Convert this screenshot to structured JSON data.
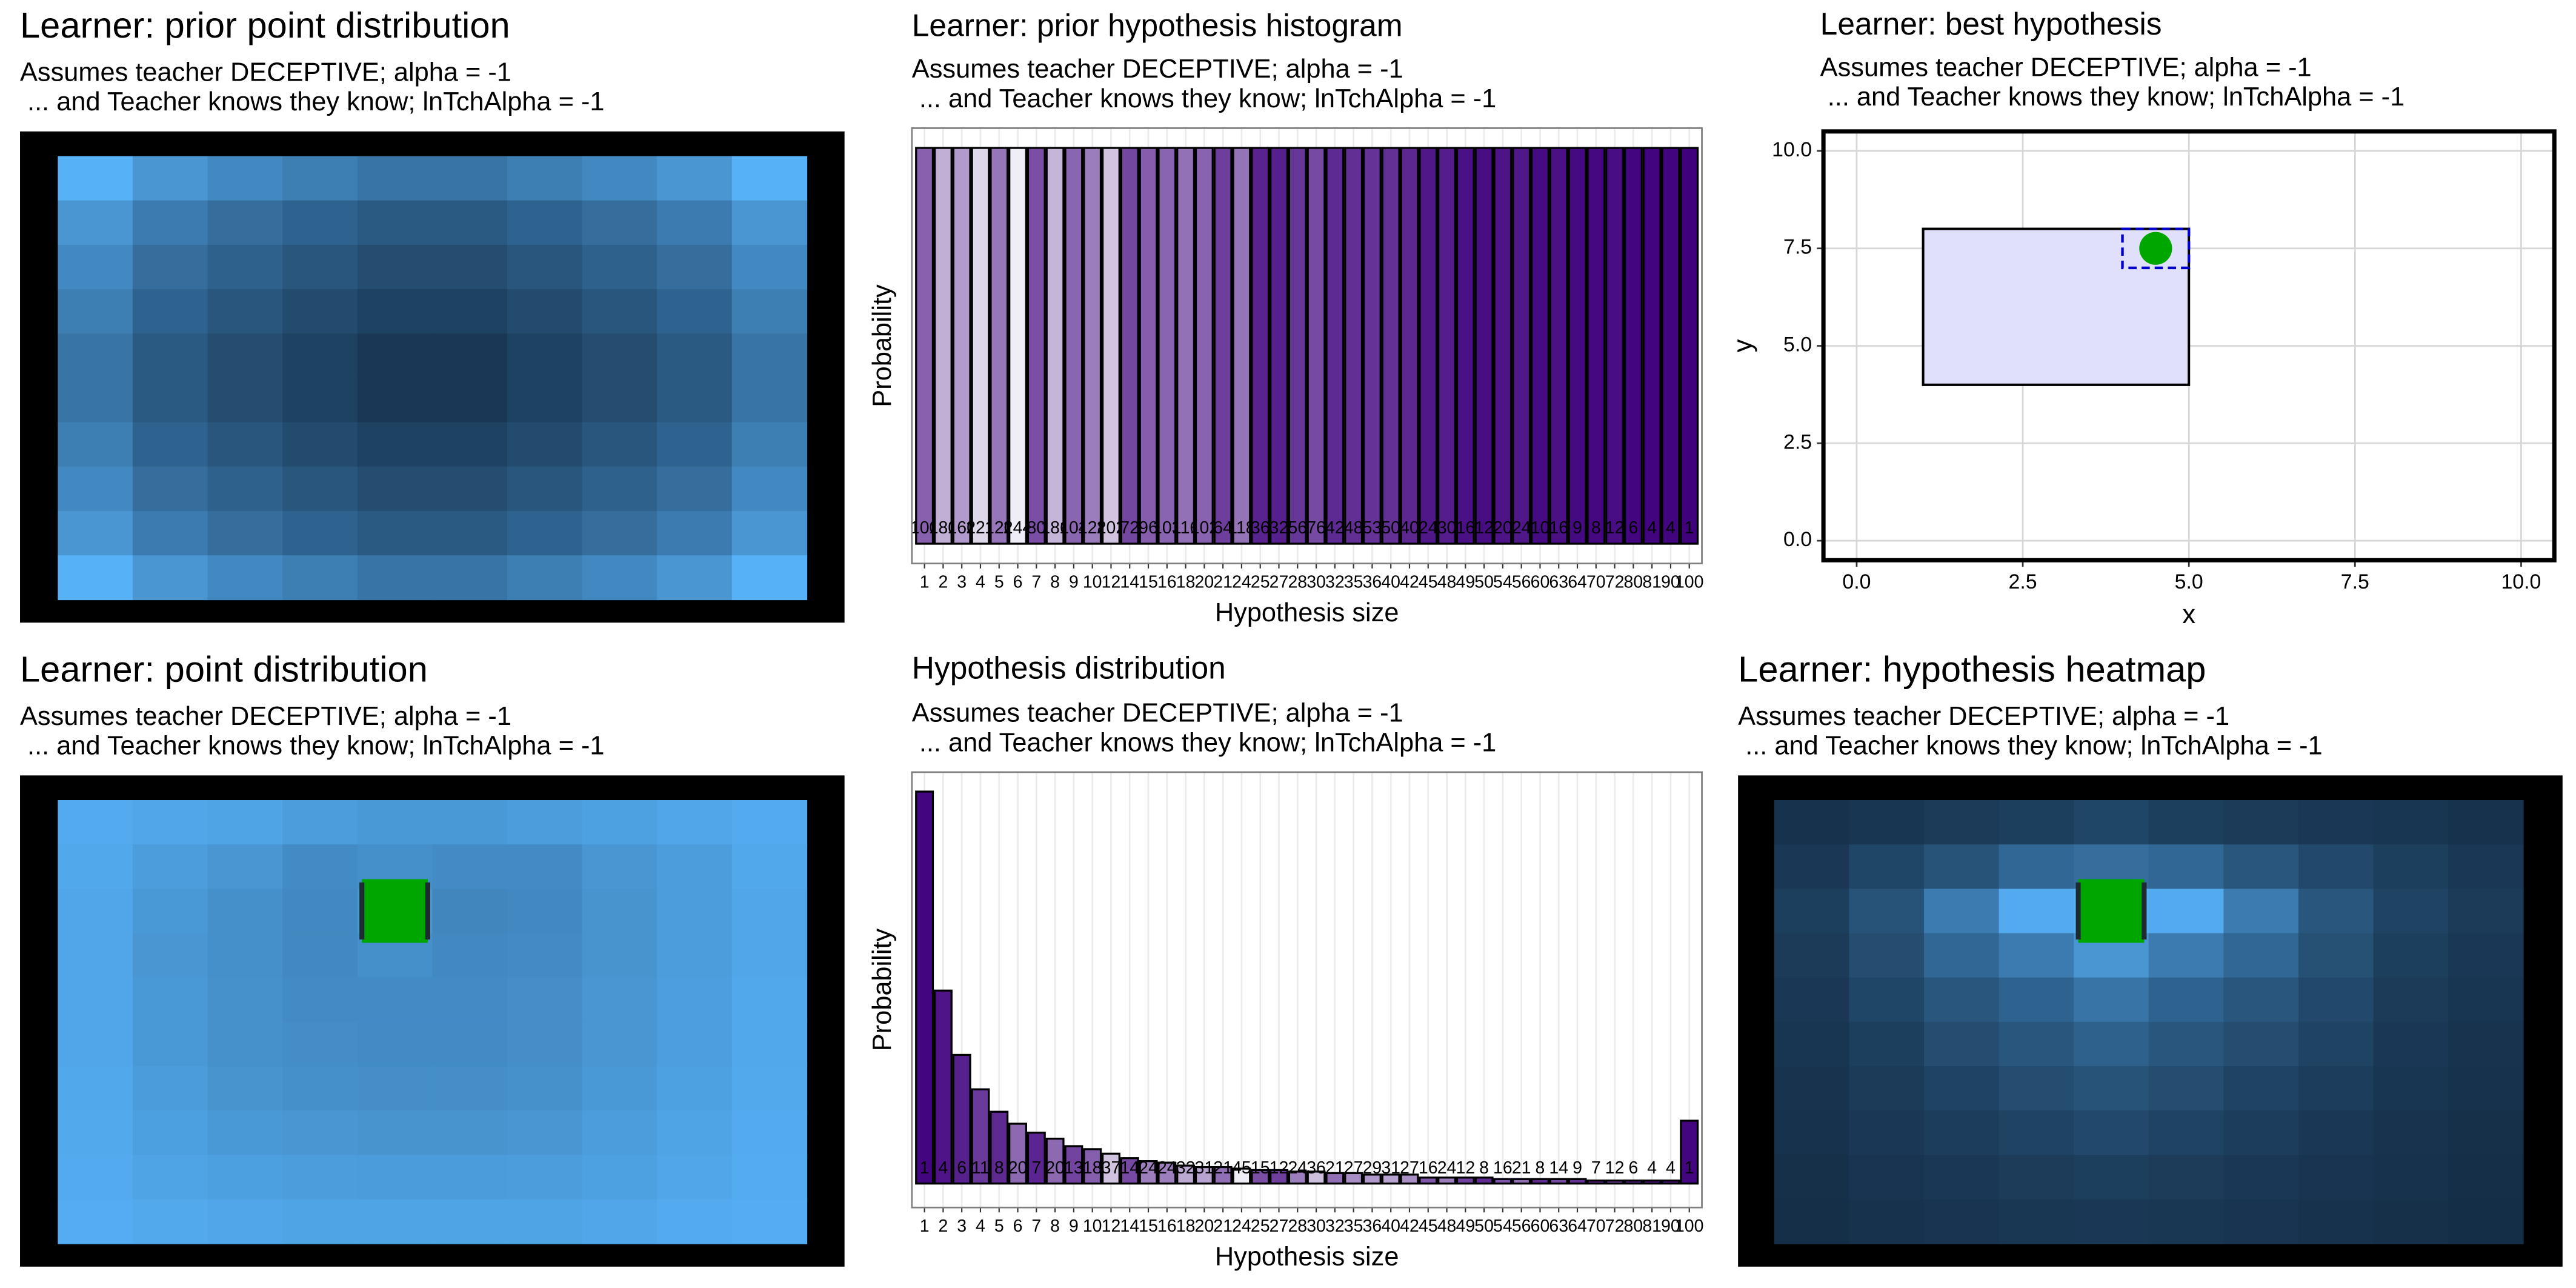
{
  "chart_data": [
    {
      "type": "heatmap",
      "title": "Learner: prior point distribution",
      "subtitle": [
        "Assumes teacher DECEPTIVE; alpha = -1",
        " ... and Teacher knows they know; lnTchAlpha = -1"
      ],
      "low_color": "#132B43",
      "high_color": "#56B1F7",
      "color_limits": [
        0,
        1
      ],
      "values": [
        [
          1.0,
          0.8,
          0.7,
          0.62,
          0.55,
          0.55,
          0.62,
          0.7,
          0.8,
          1.0
        ],
        [
          0.8,
          0.6,
          0.5,
          0.42,
          0.35,
          0.35,
          0.42,
          0.5,
          0.6,
          0.8
        ],
        [
          0.7,
          0.5,
          0.4,
          0.32,
          0.25,
          0.25,
          0.32,
          0.4,
          0.5,
          0.7
        ],
        [
          0.62,
          0.42,
          0.32,
          0.24,
          0.17,
          0.17,
          0.24,
          0.32,
          0.42,
          0.62
        ],
        [
          0.55,
          0.35,
          0.25,
          0.17,
          0.1,
          0.1,
          0.17,
          0.25,
          0.35,
          0.55
        ],
        [
          0.55,
          0.35,
          0.25,
          0.17,
          0.1,
          0.1,
          0.17,
          0.25,
          0.35,
          0.55
        ],
        [
          0.62,
          0.42,
          0.32,
          0.24,
          0.17,
          0.17,
          0.24,
          0.32,
          0.42,
          0.62
        ],
        [
          0.7,
          0.5,
          0.4,
          0.32,
          0.25,
          0.25,
          0.32,
          0.4,
          0.5,
          0.7
        ],
        [
          0.8,
          0.6,
          0.5,
          0.42,
          0.35,
          0.35,
          0.42,
          0.5,
          0.6,
          0.8
        ],
        [
          1.0,
          0.8,
          0.7,
          0.62,
          0.55,
          0.55,
          0.62,
          0.7,
          0.8,
          1.0
        ]
      ]
    },
    {
      "type": "bar",
      "title": "Learner: prior hypothesis histogram",
      "subtitle": [
        "Assumes teacher DECEPTIVE; alpha = -1",
        " ... and Teacher knows they know; lnTchAlpha = -1"
      ],
      "xlabel": "Hypothesis size",
      "ylabel": "Probability",
      "fill_low": "#3f007d",
      "fill_high": "#efedf5",
      "grid": true,
      "ylim": [
        -0.0012,
        0.0252
      ],
      "categories": [
        1,
        2,
        3,
        4,
        5,
        6,
        7,
        8,
        9,
        10,
        12,
        14,
        15,
        16,
        18,
        20,
        21,
        24,
        25,
        27,
        28,
        30,
        32,
        35,
        36,
        40,
        42,
        45,
        48,
        49,
        50,
        54,
        56,
        60,
        63,
        64,
        70,
        72,
        80,
        81,
        90,
        100
      ],
      "values": [
        0.024,
        0.024,
        0.024,
        0.024,
        0.024,
        0.024,
        0.024,
        0.024,
        0.024,
        0.024,
        0.024,
        0.024,
        0.024,
        0.024,
        0.024,
        0.024,
        0.024,
        0.024,
        0.024,
        0.024,
        0.024,
        0.024,
        0.024,
        0.024,
        0.024,
        0.024,
        0.024,
        0.024,
        0.024,
        0.024,
        0.024,
        0.024,
        0.024,
        0.024,
        0.024,
        0.024,
        0.024,
        0.024,
        0.024,
        0.024,
        0.024,
        0.024
      ],
      "counts": [
        100,
        180,
        160,
        221,
        120,
        244,
        80,
        186,
        104,
        128,
        202,
        72,
        96,
        103,
        116,
        102,
        64,
        118,
        36,
        32,
        56,
        76,
        42,
        48,
        53,
        50,
        40,
        24,
        30,
        16,
        12,
        20,
        24,
        10,
        16,
        9,
        8,
        12,
        6,
        4,
        4,
        1
      ]
    },
    {
      "type": "scatter",
      "title": "Learner: best hypothesis",
      "subtitle": [
        "Assumes teacher DECEPTIVE; alpha = -1",
        " ... and Teacher knows they know; lnTchAlpha = -1"
      ],
      "xlabel": "x",
      "ylabel": "y",
      "grid": true,
      "xlim": [
        -0.5,
        10.5
      ],
      "ylim": [
        -0.5,
        10.5
      ],
      "xticks": [
        {
          "value": 0,
          "label": "0.0"
        },
        2.5,
        {
          "value": 5,
          "label": "5.0"
        },
        7.5,
        {
          "value": 10,
          "label": "10.0"
        }
      ],
      "yticks": [
        {
          "value": 0,
          "label": "0.0"
        },
        2.5,
        {
          "value": 5,
          "label": "5.0"
        },
        7.5,
        {
          "value": 10,
          "label": "10.0"
        }
      ],
      "hypothesis": {
        "xmin": 1,
        "xmax": 5,
        "ymin": 4,
        "ymax": 8,
        "color": "#e0e0fa"
      },
      "point_box": {
        "xmin": 4,
        "xmax": 5,
        "ymin": 7,
        "ymax": 8,
        "color": "#0000cc"
      },
      "point": {
        "x": 4.5,
        "y": 7.5,
        "color": "#00a600"
      }
    },
    {
      "type": "heatmap",
      "title": "Learner: point distribution",
      "subtitle": [
        "Assumes teacher DECEPTIVE; alpha = -1",
        " ... and Teacher knows they know; lnTchAlpha = -1"
      ],
      "low_color": "#132B43",
      "high_color": "#56B1F7",
      "color_limits": [
        0,
        1
      ],
      "marker": {
        "row": 2,
        "col": 4,
        "color": "#00a600"
      },
      "values": [
        [
          0.95,
          0.92,
          0.9,
          0.85,
          0.82,
          0.82,
          0.85,
          0.88,
          0.92,
          0.95
        ],
        [
          0.93,
          0.85,
          0.8,
          0.72,
          0.75,
          0.72,
          0.72,
          0.8,
          0.85,
          0.93
        ],
        [
          0.92,
          0.82,
          0.75,
          0.7,
          0.8,
          0.68,
          0.7,
          0.78,
          0.85,
          0.92
        ],
        [
          0.92,
          0.8,
          0.75,
          0.7,
          0.75,
          0.7,
          0.72,
          0.78,
          0.85,
          0.92
        ],
        [
          0.92,
          0.82,
          0.76,
          0.72,
          0.72,
          0.72,
          0.74,
          0.8,
          0.86,
          0.93
        ],
        [
          0.92,
          0.82,
          0.76,
          0.73,
          0.72,
          0.72,
          0.74,
          0.8,
          0.86,
          0.93
        ],
        [
          0.93,
          0.84,
          0.78,
          0.75,
          0.74,
          0.74,
          0.76,
          0.82,
          0.88,
          0.94
        ],
        [
          0.94,
          0.87,
          0.82,
          0.8,
          0.78,
          0.78,
          0.8,
          0.85,
          0.9,
          0.95
        ],
        [
          0.95,
          0.9,
          0.87,
          0.85,
          0.84,
          0.84,
          0.85,
          0.88,
          0.92,
          0.96
        ],
        [
          0.97,
          0.94,
          0.92,
          0.9,
          0.9,
          0.9,
          0.9,
          0.92,
          0.95,
          0.97
        ]
      ]
    },
    {
      "type": "bar",
      "title": "Hypothesis distribution",
      "subtitle": [
        "Assumes teacher DECEPTIVE; alpha = -1",
        " ... and Teacher knows they know; lnTchAlpha = -1"
      ],
      "xlabel": "Hypothesis size",
      "ylabel": "Probability",
      "fill_low": "#3f007d",
      "fill_high": "#efedf5",
      "grid": true,
      "ylim": [
        -0.016,
        0.275
      ],
      "categories": [
        1,
        2,
        3,
        4,
        5,
        6,
        7,
        8,
        9,
        10,
        12,
        14,
        15,
        16,
        18,
        20,
        21,
        24,
        25,
        27,
        28,
        30,
        32,
        35,
        36,
        40,
        42,
        45,
        48,
        49,
        50,
        54,
        56,
        60,
        63,
        64,
        70,
        72,
        80,
        81,
        90,
        100
      ],
      "values": [
        0.262,
        0.129,
        0.086,
        0.063,
        0.048,
        0.04,
        0.034,
        0.03,
        0.025,
        0.023,
        0.02,
        0.017,
        0.015,
        0.014,
        0.012,
        0.011,
        0.011,
        0.01,
        0.009,
        0.009,
        0.008,
        0.008,
        0.007,
        0.007,
        0.006,
        0.006,
        0.006,
        0.004,
        0.004,
        0.004,
        0.004,
        0.003,
        0.003,
        0.003,
        0.003,
        0.003,
        0.002,
        0.002,
        0.002,
        0.002,
        0.002,
        0.042
      ],
      "counts": [
        1,
        4,
        6,
        11,
        8,
        20,
        7,
        20,
        13,
        18,
        37,
        14,
        24,
        24,
        32,
        31,
        21,
        45,
        15,
        12,
        24,
        36,
        21,
        27,
        29,
        31,
        27,
        16,
        24,
        12,
        8,
        16,
        21,
        8,
        14,
        9,
        7,
        12,
        6,
        4,
        4,
        1
      ]
    },
    {
      "type": "heatmap",
      "title": "Learner: hypothesis heatmap",
      "subtitle": [
        "Assumes teacher DECEPTIVE; alpha = -1",
        " ... and Teacher knows they know; lnTchAlpha = -1"
      ],
      "low_color": "#132B43",
      "high_color": "#56B1F7",
      "color_limits": [
        0,
        1
      ],
      "marker": {
        "row": 2,
        "col": 4,
        "color": "#00a600"
      },
      "values": [
        [
          0.05,
          0.08,
          0.12,
          0.15,
          0.2,
          0.15,
          0.12,
          0.1,
          0.08,
          0.05
        ],
        [
          0.1,
          0.2,
          0.3,
          0.45,
          0.5,
          0.45,
          0.32,
          0.22,
          0.15,
          0.1
        ],
        [
          0.15,
          0.3,
          0.6,
          0.95,
          1.0,
          0.95,
          0.6,
          0.32,
          0.18,
          0.12
        ],
        [
          0.12,
          0.25,
          0.45,
          0.6,
          0.8,
          0.6,
          0.45,
          0.28,
          0.15,
          0.1
        ],
        [
          0.1,
          0.2,
          0.32,
          0.42,
          0.55,
          0.42,
          0.32,
          0.22,
          0.12,
          0.08
        ],
        [
          0.08,
          0.15,
          0.25,
          0.32,
          0.4,
          0.32,
          0.25,
          0.18,
          0.1,
          0.06
        ],
        [
          0.06,
          0.12,
          0.18,
          0.25,
          0.3,
          0.25,
          0.18,
          0.14,
          0.08,
          0.05
        ],
        [
          0.05,
          0.1,
          0.14,
          0.18,
          0.22,
          0.18,
          0.14,
          0.1,
          0.06,
          0.04
        ],
        [
          0.04,
          0.07,
          0.1,
          0.13,
          0.15,
          0.13,
          0.1,
          0.07,
          0.05,
          0.03
        ],
        [
          0.03,
          0.05,
          0.07,
          0.09,
          0.1,
          0.09,
          0.07,
          0.05,
          0.04,
          0.02
        ]
      ]
    }
  ]
}
